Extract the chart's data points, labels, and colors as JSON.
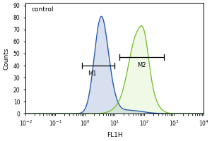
{
  "title": "",
  "xlabel": "FL1H",
  "ylabel": "Counts",
  "bg_color": "#ffffff",
  "control_label": "control",
  "m1_label": "M1",
  "m2_label": "M2",
  "blue_color": "#2255aa",
  "green_color": "#77bb33",
  "blue_fill": "#aabbdd",
  "green_fill": "#cceeaa",
  "xmin": -2,
  "xmax": 4,
  "ymin": 0,
  "ymax": 92,
  "yticks": [
    0,
    10,
    20,
    30,
    40,
    50,
    60,
    70,
    80,
    90
  ],
  "blue_peak_log": 0.55,
  "blue_peak_height": 78,
  "blue_sigma": 0.22,
  "green_peak_log": 1.75,
  "green_peak_height": 62,
  "green_sigma_l": 0.28,
  "green_sigma_r": 0.35,
  "m1_x1_log": -0.1,
  "m1_x2_log": 1.0,
  "m1_y": 40,
  "m2_x1_log": 1.15,
  "m2_x2_log": 2.65,
  "m2_y": 47
}
